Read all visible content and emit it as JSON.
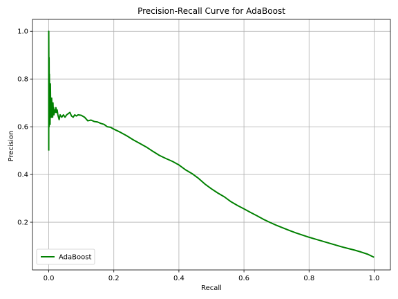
{
  "chart_data": {
    "type": "line",
    "title": "Precision-Recall Curve for AdaBoost",
    "xlabel": "Recall",
    "ylabel": "Precision",
    "xlim": [
      -0.05,
      1.05
    ],
    "ylim": [
      0.0,
      1.05
    ],
    "xticks": [
      0.0,
      0.2,
      0.4,
      0.6,
      0.8,
      1.0
    ],
    "xtick_labels": [
      "0.0",
      "0.2",
      "0.4",
      "0.6",
      "0.8",
      "1.0"
    ],
    "yticks": [
      0.2,
      0.4,
      0.6,
      0.8,
      1.0
    ],
    "ytick_labels": [
      "0.2",
      "0.4",
      "0.6",
      "0.8",
      "1.0"
    ],
    "grid": true,
    "legend_position": "lower-left",
    "series": [
      {
        "name": "AdaBoost",
        "color": "#008000",
        "x": [
          0.0,
          0.0,
          0.001,
          0.001,
          0.002,
          0.002,
          0.003,
          0.003,
          0.004,
          0.005,
          0.006,
          0.007,
          0.008,
          0.009,
          0.01,
          0.011,
          0.012,
          0.013,
          0.014,
          0.015,
          0.016,
          0.018,
          0.02,
          0.022,
          0.024,
          0.026,
          0.028,
          0.03,
          0.032,
          0.035,
          0.04,
          0.045,
          0.05,
          0.055,
          0.06,
          0.065,
          0.07,
          0.075,
          0.08,
          0.085,
          0.09,
          0.1,
          0.11,
          0.12,
          0.13,
          0.14,
          0.15,
          0.16,
          0.17,
          0.18,
          0.19,
          0.2,
          0.22,
          0.24,
          0.26,
          0.28,
          0.3,
          0.32,
          0.34,
          0.36,
          0.38,
          0.4,
          0.42,
          0.44,
          0.46,
          0.48,
          0.5,
          0.52,
          0.54,
          0.56,
          0.58,
          0.6,
          0.62,
          0.64,
          0.66,
          0.68,
          0.7,
          0.72,
          0.74,
          0.76,
          0.78,
          0.8,
          0.82,
          0.84,
          0.86,
          0.88,
          0.9,
          0.92,
          0.94,
          0.96,
          0.98,
          1.0
        ],
        "y": [
          0.5,
          1.0,
          0.6,
          0.89,
          0.62,
          0.82,
          0.64,
          0.7,
          0.61,
          0.78,
          0.66,
          0.69,
          0.64,
          0.72,
          0.65,
          0.68,
          0.64,
          0.7,
          0.66,
          0.68,
          0.65,
          0.67,
          0.66,
          0.68,
          0.66,
          0.67,
          0.65,
          0.64,
          0.63,
          0.65,
          0.64,
          0.65,
          0.64,
          0.65,
          0.655,
          0.66,
          0.645,
          0.64,
          0.65,
          0.645,
          0.65,
          0.648,
          0.64,
          0.625,
          0.628,
          0.622,
          0.62,
          0.614,
          0.61,
          0.6,
          0.598,
          0.59,
          0.577,
          0.562,
          0.545,
          0.53,
          0.515,
          0.497,
          0.48,
          0.467,
          0.455,
          0.44,
          0.42,
          0.404,
          0.384,
          0.36,
          0.34,
          0.322,
          0.306,
          0.286,
          0.27,
          0.256,
          0.241,
          0.227,
          0.212,
          0.199,
          0.187,
          0.176,
          0.165,
          0.155,
          0.146,
          0.137,
          0.129,
          0.121,
          0.113,
          0.105,
          0.097,
          0.09,
          0.083,
          0.075,
          0.066,
          0.053
        ]
      }
    ]
  }
}
